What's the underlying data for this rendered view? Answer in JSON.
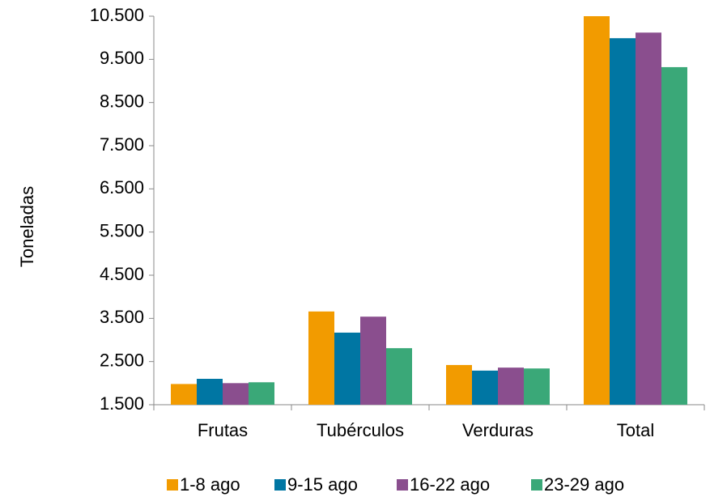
{
  "chart_data": {
    "type": "bar",
    "y_label": "Toneladas",
    "categories": [
      "Frutas",
      "Tubérculos",
      "Verduras",
      "Total"
    ],
    "series": [
      {
        "name": "1-8 ago",
        "color": "#f29b00",
        "values": [
          1980,
          3660,
          2420,
          10500
        ]
      },
      {
        "name": "9-15 ago",
        "color": "#0076a3",
        "values": [
          2100,
          3170,
          2290,
          9990
        ]
      },
      {
        "name": "16-22 ago",
        "color": "#8a4e8e",
        "values": [
          2000,
          3540,
          2360,
          10120
        ]
      },
      {
        "name": "23-29 ago",
        "color": "#3aa878",
        "values": [
          2020,
          2810,
          2340,
          9320
        ]
      }
    ],
    "ylim": [
      1500,
      10500
    ],
    "yticks": [
      {
        "value": 1500,
        "label": "1.500"
      },
      {
        "value": 2500,
        "label": "2.500"
      },
      {
        "value": 3500,
        "label": "3.500"
      },
      {
        "value": 4500,
        "label": "4.500"
      },
      {
        "value": 5500,
        "label": "5.500"
      },
      {
        "value": 6500,
        "label": "6.500"
      },
      {
        "value": 7500,
        "label": "7.500"
      },
      {
        "value": 8500,
        "label": "8.500"
      },
      {
        "value": 9500,
        "label": "9.500"
      },
      {
        "value": 10500,
        "label": "10.500"
      }
    ],
    "grid": false,
    "legend": "bottom"
  }
}
